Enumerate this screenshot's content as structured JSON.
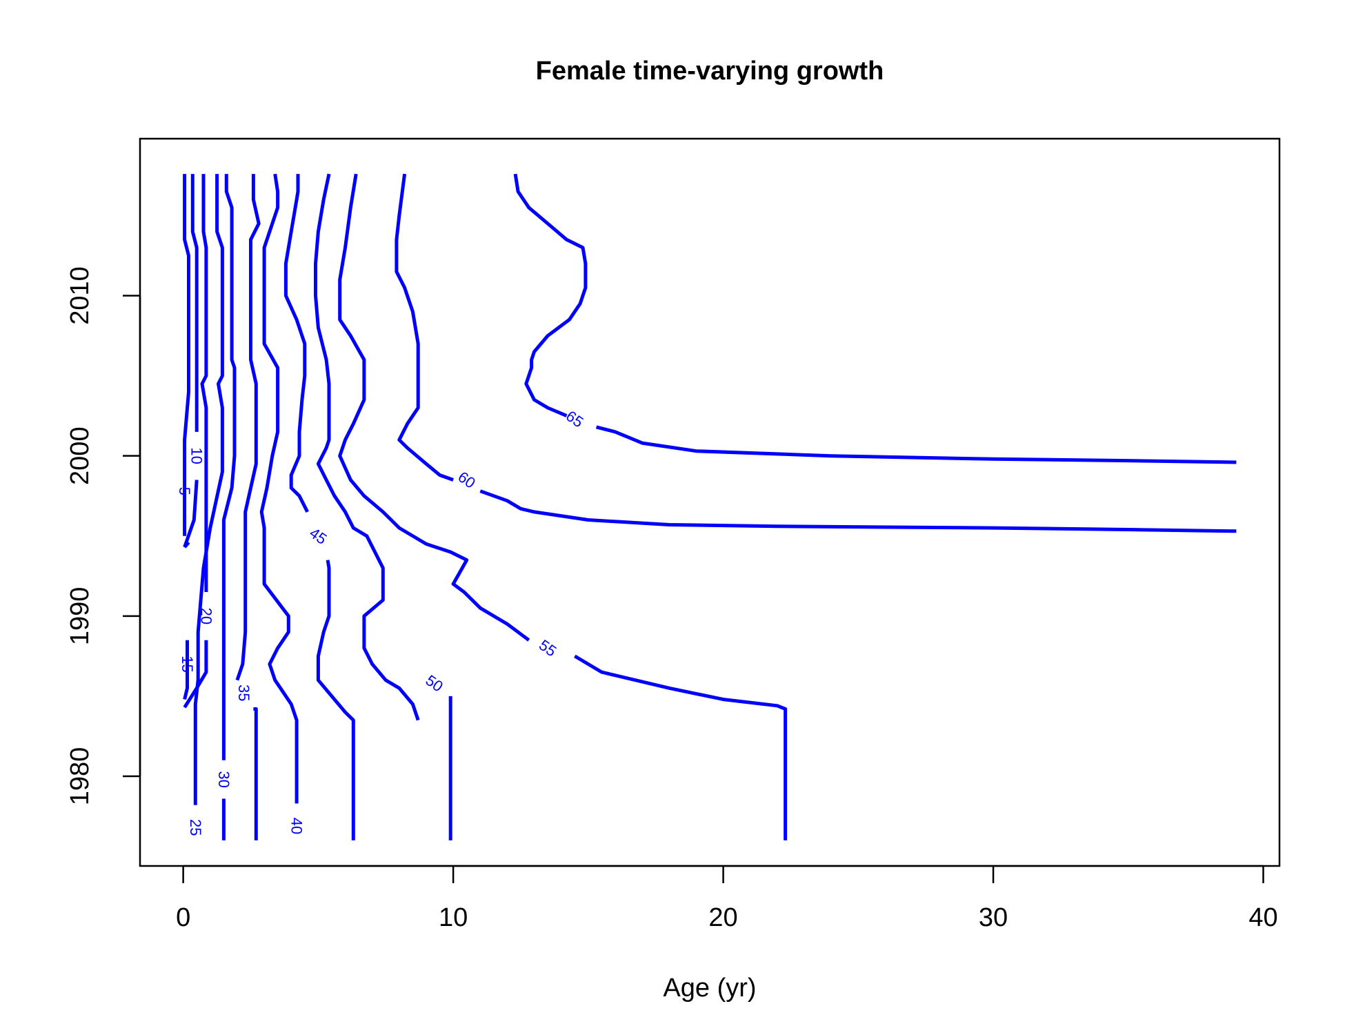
{
  "chart_data": {
    "type": "contour",
    "title": "Female time-varying growth",
    "xlabel": "Age (yr)",
    "ylabel": "",
    "xlim": [
      -1.6,
      40.6
    ],
    "ylim": [
      1974.4,
      2019.8
    ],
    "xticks": [
      0,
      10,
      20,
      30,
      40
    ],
    "yticks": [
      1980,
      1990,
      2000,
      2010
    ],
    "grid": false,
    "line_color": "#0000ff",
    "levels": [
      {
        "level": 5,
        "label": "5",
        "label_at": [
          0.05,
          1997.8
        ],
        "segments": [
          [
            [
              0.05,
              2017.6
            ],
            [
              0.05,
              2013.5
            ],
            [
              0.2,
              2012.5
            ],
            [
              0.2,
              2004.0
            ],
            [
              0.05,
              2001.0
            ],
            [
              0.05,
              1995.0
            ]
          ],
          [
            [
              0.2,
              1994.6
            ],
            [
              0.05,
              1994.3
            ]
          ]
        ]
      },
      {
        "level": 10,
        "label": "10",
        "label_at": [
          0.5,
          2000.0
        ],
        "segments": [
          [
            [
              0.35,
              2017.6
            ],
            [
              0.35,
              2014.0
            ],
            [
              0.5,
              2013.0
            ],
            [
              0.5,
              2001.5
            ]
          ],
          [
            [
              0.5,
              1998.5
            ],
            [
              0.4,
              1996.0
            ],
            [
              0.05,
              1994.3
            ]
          ]
        ]
      },
      {
        "level": 15,
        "label": "15",
        "label_at": [
          0.15,
          1987.0
        ],
        "segments": [
          [
            [
              0.15,
              1988.5
            ],
            [
              0.15,
              1985.5
            ],
            [
              0.05,
              1984.8
            ]
          ]
        ]
      },
      {
        "level": 20,
        "label": "20",
        "label_at": [
          0.85,
          1990.0
        ],
        "segments": [
          [
            [
              0.75,
              2017.6
            ],
            [
              0.75,
              2014.0
            ],
            [
              0.85,
              2013.0
            ],
            [
              0.85,
              2005.0
            ],
            [
              0.7,
              2004.5
            ],
            [
              0.85,
              2003.0
            ],
            [
              0.85,
              1991.5
            ]
          ],
          [
            [
              0.85,
              1988.5
            ],
            [
              0.85,
              1986.5
            ],
            [
              0.5,
              1985.5
            ],
            [
              0.05,
              1984.3
            ]
          ]
        ]
      },
      {
        "level": 25,
        "label": "25",
        "label_at": [
          0.45,
          1976.8
        ],
        "segments": [
          [
            [
              1.25,
              2017.6
            ],
            [
              1.25,
              2014.0
            ],
            [
              1.45,
              2013.0
            ],
            [
              1.45,
              2005.0
            ],
            [
              1.3,
              2004.5
            ],
            [
              1.45,
              2003.0
            ],
            [
              1.45,
              1999.0
            ],
            [
              1.0,
              1995.5
            ],
            [
              0.75,
              1993.0
            ],
            [
              0.55,
              1989.0
            ],
            [
              0.55,
              1986.0
            ],
            [
              0.45,
              1984.5
            ],
            [
              0.45,
              1978.2
            ]
          ]
        ]
      },
      {
        "level": 30,
        "label": "30",
        "label_at": [
          1.5,
          1979.8
        ],
        "segments": [
          [
            [
              1.6,
              2017.6
            ],
            [
              1.6,
              2016.5
            ],
            [
              1.8,
              2015.5
            ],
            [
              1.8,
              2013.5
            ],
            [
              1.8,
              2006.0
            ],
            [
              1.9,
              2005.5
            ],
            [
              1.9,
              2000.0
            ],
            [
              1.8,
              1998.0
            ],
            [
              1.5,
              1996.0
            ],
            [
              1.5,
              1986.5
            ],
            [
              1.5,
              1981.0
            ]
          ],
          [
            [
              1.5,
              1978.6
            ],
            [
              1.5,
              1976.0
            ]
          ]
        ]
      },
      {
        "level": 35,
        "label": "35",
        "label_at": [
          2.25,
          1985.2
        ],
        "segments": [
          [
            [
              2.6,
              2017.6
            ],
            [
              2.6,
              2016.0
            ],
            [
              2.8,
              2014.5
            ],
            [
              2.5,
              2013.5
            ],
            [
              2.5,
              2006.0
            ],
            [
              2.7,
              2004.5
            ],
            [
              2.7,
              1999.5
            ],
            [
              2.5,
              1998.0
            ],
            [
              2.3,
              1996.5
            ],
            [
              2.3,
              1993.5
            ],
            [
              2.3,
              1989.0
            ],
            [
              2.2,
              1987.0
            ],
            [
              2.0,
              1986.0
            ]
          ],
          [
            [
              2.6,
              1984.2
            ],
            [
              2.7,
              1984.2
            ],
            [
              2.7,
              1976.0
            ]
          ]
        ]
      },
      {
        "level": 40,
        "label": "40",
        "label_at": [
          4.2,
          1976.9
        ],
        "segments": [
          [
            [
              3.4,
              2017.6
            ],
            [
              3.5,
              2016.5
            ],
            [
              3.5,
              2015.5
            ],
            [
              3.0,
              2013.0
            ],
            [
              3.0,
              2007.0
            ],
            [
              3.5,
              2005.5
            ],
            [
              3.5,
              2001.5
            ],
            [
              3.3,
              2000.0
            ],
            [
              3.1,
              1998.0
            ],
            [
              2.9,
              1996.5
            ],
            [
              3.0,
              1995.5
            ],
            [
              3.0,
              1993.5
            ],
            [
              3.0,
              1992.0
            ],
            [
              3.9,
              1990.0
            ],
            [
              3.9,
              1989.0
            ],
            [
              3.5,
              1988.0
            ],
            [
              3.2,
              1987.0
            ],
            [
              3.4,
              1986.0
            ],
            [
              3.6,
              1985.5
            ],
            [
              4.0,
              1984.5
            ],
            [
              4.2,
              1983.5
            ],
            [
              4.2,
              1978.3
            ]
          ]
        ]
      },
      {
        "level": 45,
        "label": "45",
        "label_at": [
          5.0,
          1995.0
        ],
        "segments": [
          [
            [
              4.25,
              2017.6
            ],
            [
              4.25,
              2016.5
            ],
            [
              4.2,
              2016.0
            ],
            [
              4.0,
              2014.0
            ],
            [
              3.8,
              2012.0
            ],
            [
              3.8,
              2010.0
            ],
            [
              4.2,
              2008.5
            ],
            [
              4.5,
              2007.0
            ],
            [
              4.5,
              2005.0
            ],
            [
              4.4,
              2003.5
            ],
            [
              4.3,
              2001.5
            ],
            [
              4.3,
              2000.0
            ],
            [
              4.0,
              1998.8
            ],
            [
              4.0,
              1998.0
            ],
            [
              4.3,
              1997.5
            ],
            [
              4.6,
              1996.5
            ]
          ],
          [
            [
              5.35,
              1993.5
            ],
            [
              5.4,
              1993.0
            ],
            [
              5.4,
              1990.0
            ],
            [
              5.2,
              1989.0
            ],
            [
              5.0,
              1987.5
            ],
            [
              5.0,
              1986.0
            ],
            [
              5.5,
              1985.0
            ],
            [
              6.0,
              1984.0
            ],
            [
              6.3,
              1983.5
            ],
            [
              6.3,
              1976.0
            ]
          ]
        ]
      },
      {
        "level": 50,
        "label": "50",
        "label_at": [
          9.3,
          1985.8
        ],
        "segments": [
          [
            [
              5.4,
              2017.6
            ],
            [
              5.2,
              2016.0
            ],
            [
              5.0,
              2014.0
            ],
            [
              4.9,
              2012.0
            ],
            [
              4.9,
              2010.0
            ],
            [
              5.0,
              2008.0
            ],
            [
              5.3,
              2006.0
            ],
            [
              5.4,
              2004.5
            ],
            [
              5.4,
              2001.0
            ],
            [
              5.3,
              2000.5
            ],
            [
              5.0,
              1999.5
            ],
            [
              5.3,
              1998.5
            ],
            [
              5.6,
              1997.5
            ],
            [
              6.0,
              1996.5
            ],
            [
              6.3,
              1995.5
            ],
            [
              6.8,
              1995.0
            ],
            [
              7.4,
              1993.0
            ],
            [
              7.4,
              1991.0
            ],
            [
              6.7,
              1990.0
            ],
            [
              6.7,
              1988.0
            ],
            [
              7.0,
              1987.0
            ],
            [
              7.5,
              1986.0
            ],
            [
              8.0,
              1985.5
            ],
            [
              8.5,
              1984.5
            ],
            [
              8.7,
              1983.5
            ]
          ],
          [
            [
              9.9,
              1985.0
            ],
            [
              9.9,
              1976.0
            ]
          ]
        ]
      },
      {
        "level": 55,
        "label": "55",
        "label_at": [
          13.5,
          1988.0
        ],
        "segments": [
          [
            [
              6.4,
              2017.6
            ],
            [
              6.2,
              2015.5
            ],
            [
              6.0,
              2013.0
            ],
            [
              5.8,
              2011.0
            ],
            [
              5.8,
              2008.5
            ],
            [
              6.2,
              2007.5
            ],
            [
              6.7,
              2006.0
            ],
            [
              6.7,
              2003.5
            ],
            [
              6.3,
              2002.0
            ],
            [
              6.0,
              2001.0
            ],
            [
              5.8,
              2000.0
            ],
            [
              6.2,
              1998.5
            ],
            [
              6.7,
              1997.5
            ],
            [
              7.4,
              1996.5
            ],
            [
              8.0,
              1995.5
            ],
            [
              9.0,
              1994.5
            ],
            [
              9.9,
              1994.0
            ],
            [
              10.5,
              1993.5
            ],
            [
              10.0,
              1992.0
            ],
            [
              10.4,
              1991.5
            ],
            [
              11.0,
              1990.5
            ],
            [
              12.0,
              1989.5
            ],
            [
              12.8,
              1988.5
            ]
          ],
          [
            [
              14.5,
              1987.5
            ],
            [
              15.5,
              1986.5
            ],
            [
              18.0,
              1985.5
            ],
            [
              20.0,
              1984.8
            ],
            [
              22.0,
              1984.4
            ],
            [
              22.3,
              1984.2
            ],
            [
              22.3,
              1976.0
            ]
          ]
        ]
      },
      {
        "level": 60,
        "label": "60",
        "label_at": [
          10.5,
          1998.5
        ],
        "segments": [
          [
            [
              8.2,
              2017.6
            ],
            [
              8.0,
              2015.0
            ],
            [
              7.9,
              2013.5
            ],
            [
              7.9,
              2011.5
            ],
            [
              8.2,
              2010.5
            ],
            [
              8.5,
              2009.0
            ],
            [
              8.7,
              2007.0
            ],
            [
              8.7,
              2003.0
            ],
            [
              8.3,
              2002.0
            ],
            [
              8.0,
              2001.0
            ],
            [
              8.3,
              2000.5
            ],
            [
              9.0,
              1999.5
            ],
            [
              9.5,
              1998.8
            ],
            [
              10.0,
              1998.5
            ]
          ],
          [
            [
              11.0,
              1997.8
            ],
            [
              12.0,
              1997.2
            ],
            [
              12.5,
              1996.7
            ],
            [
              13.0,
              1996.5
            ],
            [
              15.0,
              1996.0
            ],
            [
              18.0,
              1995.7
            ],
            [
              22.0,
              1995.6
            ],
            [
              30.0,
              1995.5
            ],
            [
              35.0,
              1995.4
            ],
            [
              39.0,
              1995.3
            ]
          ]
        ]
      },
      {
        "level": 65,
        "label": "65",
        "label_at": [
          14.5,
          2002.3
        ],
        "segments": [
          [
            [
              12.3,
              2017.6
            ],
            [
              12.4,
              2016.5
            ],
            [
              12.8,
              2015.5
            ],
            [
              13.5,
              2014.5
            ],
            [
              14.2,
              2013.5
            ],
            [
              14.8,
              2013.0
            ],
            [
              14.9,
              2012.0
            ],
            [
              14.9,
              2010.5
            ],
            [
              14.7,
              2009.5
            ],
            [
              14.3,
              2008.5
            ],
            [
              13.5,
              2007.5
            ],
            [
              13.0,
              2006.5
            ],
            [
              12.9,
              2006.0
            ],
            [
              12.9,
              2005.5
            ],
            [
              12.7,
              2004.5
            ],
            [
              13.0,
              2003.5
            ],
            [
              13.5,
              2003.0
            ],
            [
              14.2,
              2002.5
            ]
          ],
          [
            [
              15.3,
              2001.8
            ],
            [
              16.0,
              2001.5
            ],
            [
              17.0,
              2000.8
            ],
            [
              19.0,
              2000.3
            ],
            [
              24.0,
              2000.0
            ],
            [
              30.0,
              1999.8
            ],
            [
              35.0,
              1999.7
            ],
            [
              39.0,
              1999.6
            ]
          ]
        ]
      }
    ]
  }
}
